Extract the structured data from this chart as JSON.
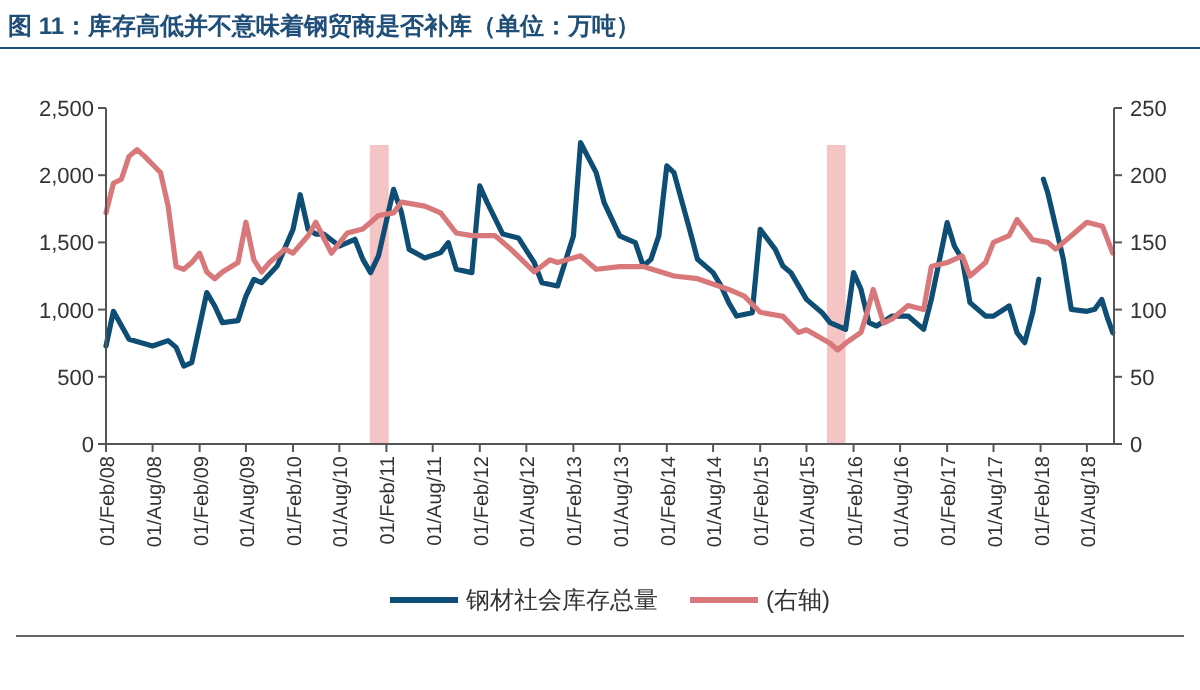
{
  "chart_data": {
    "type": "line",
    "title": "图 11：库存高低并不意味着钢贸商是否补库（单位：万吨）",
    "xlim": [
      "2008-02-01",
      "2018-11-15"
    ],
    "xticks": [
      {
        "value": "2008-02-01",
        "label": "01/Feb/08"
      },
      {
        "value": "2008-08-01",
        "label": "01/Aug/08"
      },
      {
        "value": "2009-02-01",
        "label": "01/Feb/09"
      },
      {
        "value": "2009-08-01",
        "label": "01/Aug/09"
      },
      {
        "value": "2010-02-01",
        "label": "01/Feb/10"
      },
      {
        "value": "2010-08-01",
        "label": "01/Aug/10"
      },
      {
        "value": "2011-02-01",
        "label": "01/Feb/11"
      },
      {
        "value": "2011-08-01",
        "label": "01/Aug/11"
      },
      {
        "value": "2012-02-01",
        "label": "01/Feb/12"
      },
      {
        "value": "2012-08-01",
        "label": "01/Aug/12"
      },
      {
        "value": "2013-02-01",
        "label": "01/Feb/13"
      },
      {
        "value": "2013-08-01",
        "label": "01/Aug/13"
      },
      {
        "value": "2014-02-01",
        "label": "01/Feb/14"
      },
      {
        "value": "2014-08-01",
        "label": "01/Aug/14"
      },
      {
        "value": "2015-02-01",
        "label": "01/Feb/15"
      },
      {
        "value": "2015-08-01",
        "label": "01/Aug/15"
      },
      {
        "value": "2016-02-01",
        "label": "01/Feb/16"
      },
      {
        "value": "2016-08-01",
        "label": "01/Aug/16"
      },
      {
        "value": "2017-02-01",
        "label": "01/Feb/17"
      },
      {
        "value": "2017-08-01",
        "label": "01/Aug/17"
      },
      {
        "value": "2018-02-01",
        "label": "01/Feb/18"
      },
      {
        "value": "2018-08-01",
        "label": "01/Aug/18"
      }
    ],
    "ylim": [
      0,
      2500
    ],
    "yticks": [
      {
        "value": 0,
        "label": "0"
      },
      {
        "value": 500,
        "label": "500"
      },
      {
        "value": 1000,
        "label": "1,000"
      },
      {
        "value": 1500,
        "label": "1,500"
      },
      {
        "value": 2000,
        "label": "2,000"
      },
      {
        "value": 2500,
        "label": "2,500"
      }
    ],
    "y2lim": [
      0,
      250
    ],
    "y2ticks": [
      0,
      50,
      100,
      150,
      200,
      250
    ],
    "grid": false,
    "legend": "bottom",
    "line_style": "solid",
    "marker": "none",
    "bands": [
      {
        "axis": "x",
        "from": "2010-11-28",
        "to": "2011-02-10",
        "label": null,
        "color": "#f5c4c4"
      },
      {
        "axis": "x",
        "from": "2015-10-20",
        "to": "2016-01-01",
        "label": null,
        "color": "#f5c4c4"
      }
    ],
    "series": [
      {
        "name": "钢材社会库存总量",
        "color": "#0e4d74",
        "x": [
          "2008-02",
          "2008-03",
          "2008-05",
          "2008-08",
          "2008-10",
          "2008-11",
          "2008-12",
          "2009-01",
          "2009-03",
          "2009-04",
          "2009-05",
          "2009-07",
          "2009-08",
          "2009-09",
          "2009-10",
          "2009-12",
          "2010-02",
          "2010-03",
          "2010-04",
          "2010-05",
          "2010-06",
          "2010-08",
          "2010-10",
          "2010-11",
          "2010-12",
          "2011-01",
          "2011-03",
          "2011-04",
          "2011-05",
          "2011-07",
          "2011-09",
          "2011-10",
          "2011-11",
          "2012-01",
          "2012-02",
          "2012-03",
          "2012-05",
          "2012-07",
          "2012-09",
          "2012-10",
          "2012-12",
          "2013-02",
          "2013-03",
          "2013-05",
          "2013-06",
          "2013-08",
          "2013-10",
          "2013-11",
          "2013-12",
          "2014-01",
          "2014-02",
          "2014-03",
          "2014-05",
          "2014-06",
          "2014-08",
          "2014-09",
          "2014-10",
          "2014-11",
          "2015-01",
          "2015-02",
          "2015-04",
          "2015-05",
          "2015-06",
          "2015-08",
          "2015-10",
          "2015-11",
          "2016-01",
          "2016-02",
          "2016-03",
          "2016-04",
          "2016-05",
          "2016-07",
          "2016-09",
          "2016-11",
          "2016-12",
          "2017-02",
          "2017-03",
          "2017-04",
          "2017-05",
          "2017-07",
          "2017-08",
          "2017-10",
          "2017-11",
          "2017-12",
          "2018-01",
          "2018-01-25",
          "2018-02-05",
          "2018-02-12",
          "2018-03",
          "2018-05",
          "2018-06",
          "2018-08",
          "2018-09",
          "2018-09-28",
          "2018-10-18",
          "2018-11-10"
        ],
        "values": [
          729,
          987,
          779,
          729,
          769,
          719,
          580,
          605,
          1126,
          1027,
          903,
          918,
          1101,
          1225,
          1200,
          1324,
          1597,
          1855,
          1597,
          1562,
          1562,
          1473,
          1523,
          1374,
          1275,
          1399,
          1895,
          1721,
          1448,
          1384,
          1424,
          1498,
          1300,
          1275,
          1920,
          1796,
          1562,
          1533,
          1349,
          1200,
          1176,
          1548,
          2242,
          2019,
          1796,
          1548,
          1498,
          1324,
          1374,
          1550,
          2069,
          2019,
          1597,
          1374,
          1275,
          1176,
          1052,
          952,
          977,
          1597,
          1448,
          1324,
          1275,
          1076,
          977,
          903,
          853,
          1275,
          1151,
          903,
          878,
          952,
          952,
          853,
          1076,
          1647,
          1473,
          1374,
          1052,
          952,
          952,
          1027,
          828,
          754,
          977,
          1225,
          null,
          1970,
          1870,
          1374,
          1002,
          987,
          1002,
          1076,
          952,
          828
        ]
      },
      {
        "name": "(右轴)",
        "color": "#d9787a",
        "axis": "y2",
        "x": [
          "2008-02",
          "2008-03",
          "2008-04",
          "2008-05",
          "2008-06",
          "2008-07",
          "2008-09",
          "2008-10",
          "2008-11",
          "2008-12",
          "2009-01",
          "2009-02",
          "2009-03",
          "2009-04",
          "2009-05",
          "2009-07",
          "2009-08",
          "2009-09",
          "2009-10",
          "2009-11",
          "2010-01",
          "2010-02",
          "2010-04",
          "2010-05",
          "2010-07",
          "2010-09",
          "2010-11",
          "2011-01",
          "2011-03",
          "2011-04",
          "2011-07",
          "2011-09",
          "2011-11",
          "2012-01",
          "2012-04",
          "2012-06",
          "2012-09",
          "2012-11",
          "2012-12",
          "2013-03",
          "2013-05",
          "2013-08",
          "2013-11",
          "2014-03",
          "2014-06",
          "2014-10",
          "2014-12",
          "2015-02",
          "2015-05",
          "2015-07",
          "2015-08",
          "2015-11",
          "2015-12",
          "2016-01",
          "2016-03",
          "2016-03-25",
          "2016-04-18",
          "2016-05-28",
          "2016-07",
          "2016-09",
          "2016-11",
          "2016-12",
          "2017-02",
          "2017-04",
          "2017-05",
          "2017-07",
          "2017-08",
          "2017-10",
          "2017-11",
          "2018-01",
          "2018-03",
          "2018-04",
          "2018-06",
          "2018-08",
          "2018-10",
          "2018-11-10"
        ],
        "values": [
          172,
          194,
          197,
          214,
          219,
          214,
          202,
          177,
          132,
          130,
          135,
          142,
          128,
          123,
          128,
          135,
          165,
          137,
          128,
          135,
          145,
          142,
          155,
          165,
          142,
          157,
          160,
          170,
          172,
          180,
          177,
          172,
          157,
          155,
          155,
          145,
          128,
          137,
          135,
          140,
          130,
          132,
          132,
          125,
          123,
          115,
          110,
          98,
          95,
          83,
          85,
          75,
          70,
          75,
          83,
          98,
          115,
          90,
          93,
          103,
          100,
          132,
          135,
          140,
          125,
          135,
          150,
          155,
          167,
          152,
          150,
          145,
          155,
          165,
          162,
          142
        ]
      }
    ]
  }
}
